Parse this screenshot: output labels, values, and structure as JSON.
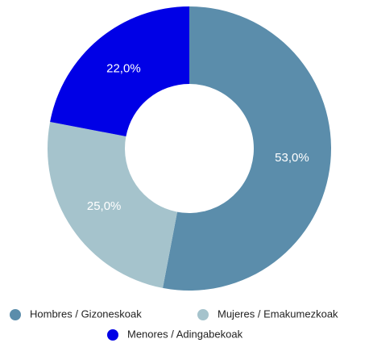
{
  "chart_data": {
    "type": "donut",
    "categories": [
      "Hombres / Gizoneskoak",
      "Mujeres / Emakumezkoak",
      "Menores / Adingabekoak"
    ],
    "values": [
      53,
      25,
      22
    ],
    "value_labels": [
      "53,0%",
      "25,0%",
      "22,0%"
    ],
    "colors": [
      "#5b8dab",
      "#a5c3cc",
      "#0000e6"
    ],
    "legend": "bottom"
  }
}
